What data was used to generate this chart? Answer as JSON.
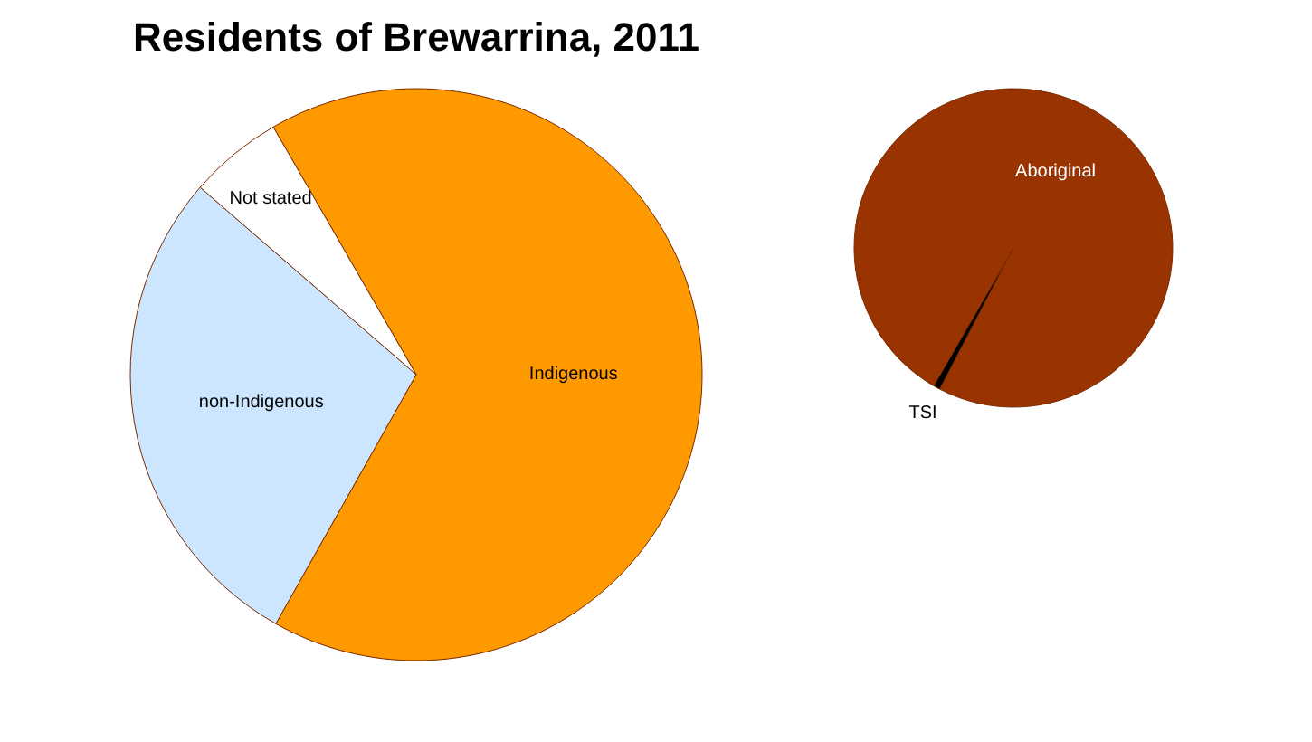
{
  "chart_data": [
    {
      "type": "pie",
      "title": "Residents of Brewarrina, 2011",
      "categories": [
        "Indigenous",
        "non-Indigenous",
        "Not stated"
      ],
      "values": [
        66.5,
        28.2,
        5.3
      ],
      "colors": [
        "#ff9900",
        "#cce6ff",
        "#ffffff"
      ]
    },
    {
      "type": "pie",
      "categories": [
        "TSI",
        "Aboriginal"
      ],
      "values": [
        0.7,
        99.3
      ],
      "colors": [
        "#000000",
        "#993300"
      ]
    }
  ]
}
